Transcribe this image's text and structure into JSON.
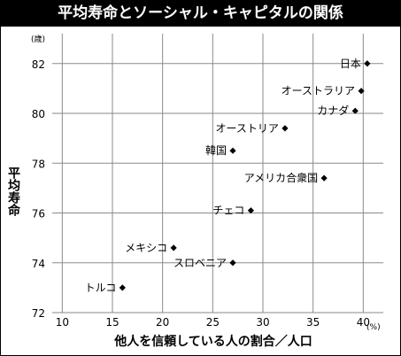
{
  "chart_data": {
    "type": "scatter",
    "title": "平均寿命とソーシャル・キャピタルの関係",
    "xlabel": "他人を信頼している人の割合／人口",
    "ylabel": "平均寿命",
    "x_unit": "(%)",
    "y_unit": "(歳)",
    "xlim": [
      9,
      42
    ],
    "ylim": [
      72,
      83.2
    ],
    "xticks": [
      10,
      15,
      20,
      25,
      30,
      35,
      40
    ],
    "yticks": [
      72,
      74,
      76,
      78,
      80,
      82
    ],
    "grid": true,
    "points": [
      {
        "label": "日本",
        "x": 40.4,
        "y": 82.0
      },
      {
        "label": "オーストラリア",
        "x": 39.8,
        "y": 80.9
      },
      {
        "label": "カナダ",
        "x": 39.2,
        "y": 80.1
      },
      {
        "label": "オーストリア",
        "x": 32.2,
        "y": 79.4
      },
      {
        "label": "韓国",
        "x": 27.0,
        "y": 78.5
      },
      {
        "label": "アメリカ合衆国",
        "x": 36.1,
        "y": 77.4
      },
      {
        "label": "チェコ",
        "x": 28.8,
        "y": 76.1
      },
      {
        "label": "メキシコ",
        "x": 21.1,
        "y": 74.6
      },
      {
        "label": "スロベニア",
        "x": 27.0,
        "y": 74.0
      },
      {
        "label": "トルコ",
        "x": 16.0,
        "y": 73.0
      }
    ]
  }
}
